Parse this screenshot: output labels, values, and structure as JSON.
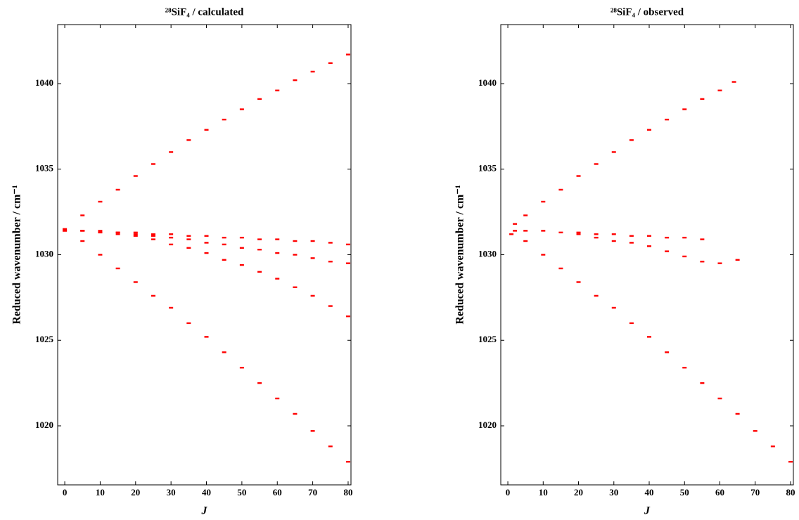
{
  "chart_data": [
    {
      "type": "scatter",
      "title": "²⁸SiF₄ / calculated",
      "x_label": "J",
      "y_label": "Reduced wavenumber / cm⁻¹",
      "xlim": [
        -2,
        80.8
      ],
      "ylim": [
        1016.55,
        1043.45
      ],
      "xticks": [
        0,
        10,
        20,
        30,
        40,
        50,
        60,
        70,
        80
      ],
      "yticks": [
        1020,
        1025,
        1030,
        1035,
        1040
      ],
      "series": [
        {
          "color": "#ff0000",
          "x": [
            0,
            5,
            10,
            15,
            20,
            25,
            30,
            35,
            40,
            45,
            50,
            55,
            60,
            65,
            70,
            75,
            80
          ],
          "values": [
            1031.5,
            1032.3,
            1033.1,
            1033.8,
            1034.6,
            1035.3,
            1036.0,
            1036.7,
            1037.3,
            1037.9,
            1038.5,
            1039.1,
            1039.6,
            1040.2,
            1040.7,
            1041.2,
            1041.7
          ]
        },
        {
          "color": "#ff0000",
          "x": [
            0,
            5,
            10,
            15,
            20,
            25,
            30,
            35,
            40,
            45,
            50,
            55,
            60,
            65,
            70,
            75,
            80
          ],
          "values": [
            1031.5,
            1030.8,
            1030.0,
            1029.2,
            1028.4,
            1027.6,
            1026.9,
            1026.0,
            1025.2,
            1024.3,
            1023.4,
            1022.5,
            1021.6,
            1020.7,
            1019.7,
            1018.8,
            1017.9
          ]
        },
        {
          "color": "#ff0000",
          "x": [
            0,
            5,
            10,
            15,
            20,
            25,
            30,
            35,
            40,
            45,
            50,
            55,
            60,
            65,
            70,
            75,
            80
          ],
          "values": [
            1031.4,
            1031.4,
            1031.4,
            1031.3,
            1031.3,
            1031.2,
            1031.2,
            1031.1,
            1031.1,
            1031.0,
            1031.0,
            1030.9,
            1030.9,
            1030.8,
            1030.8,
            1030.7,
            1030.6
          ]
        },
        {
          "color": "#ff0000",
          "x": [
            0,
            5,
            10,
            15,
            20,
            25,
            30,
            35,
            40,
            45,
            50,
            55,
            60,
            65,
            70,
            75,
            80
          ],
          "values": [
            1031.4,
            1031.4,
            1031.3,
            1031.3,
            1031.2,
            1031.1,
            1031.0,
            1030.9,
            1030.7,
            1030.6,
            1030.4,
            1030.3,
            1030.1,
            1030.0,
            1029.8,
            1029.6,
            1029.5
          ]
        },
        {
          "color": "#ff0000",
          "x": [
            0,
            5,
            10,
            15,
            20,
            25,
            30,
            35,
            40,
            45,
            50,
            55,
            60,
            65,
            70,
            75,
            80
          ],
          "values": [
            1031.4,
            1031.4,
            1031.3,
            1031.2,
            1031.1,
            1030.9,
            1030.6,
            1030.4,
            1030.1,
            1029.7,
            1029.4,
            1029.0,
            1028.6,
            1028.1,
            1027.6,
            1027.0,
            1026.4
          ]
        }
      ]
    },
    {
      "type": "scatter",
      "title": "²⁸SiF₄ / observed",
      "x_label": "J",
      "y_label": "Reduced wavenumber / cm⁻¹",
      "xlim": [
        -2,
        80.8
      ],
      "ylim": [
        1016.55,
        1043.45
      ],
      "xticks": [
        0,
        10,
        20,
        30,
        40,
        50,
        60,
        70,
        80
      ],
      "yticks": [
        1020,
        1025,
        1030,
        1035,
        1040
      ],
      "series": [
        {
          "color": "#ff0000",
          "x": [
            2,
            5,
            10,
            15,
            20,
            25,
            30,
            35,
            40,
            45,
            50,
            55,
            60,
            64
          ],
          "values": [
            1031.8,
            1032.3,
            1033.1,
            1033.8,
            1034.6,
            1035.3,
            1036.0,
            1036.7,
            1037.3,
            1037.9,
            1038.5,
            1039.1,
            1039.6,
            1040.1
          ]
        },
        {
          "color": "#ff0000",
          "x": [
            1,
            5,
            10,
            15,
            20,
            25,
            30,
            35,
            40,
            45,
            50,
            55,
            60,
            65,
            70,
            75,
            80
          ],
          "values": [
            1031.2,
            1030.8,
            1030.0,
            1029.2,
            1028.4,
            1027.6,
            1026.9,
            1026.0,
            1025.2,
            1024.3,
            1023.4,
            1022.5,
            1021.6,
            1020.7,
            1019.7,
            1018.8,
            1017.9
          ]
        },
        {
          "color": "#ff0000",
          "x": [
            2,
            5,
            10,
            15,
            20,
            25,
            30,
            35,
            40,
            45,
            50,
            55
          ],
          "values": [
            1031.4,
            1031.4,
            1031.4,
            1031.3,
            1031.3,
            1031.2,
            1031.2,
            1031.1,
            1031.1,
            1031.0,
            1031.0,
            1030.9
          ]
        },
        {
          "color": "#ff0000",
          "x": [
            20,
            25,
            30,
            35,
            40,
            45,
            50,
            55,
            60,
            65
          ],
          "values": [
            1031.2,
            1031.0,
            1030.8,
            1030.7,
            1030.5,
            1030.2,
            1029.9,
            1029.6,
            1029.5,
            1029.7
          ]
        }
      ]
    }
  ]
}
